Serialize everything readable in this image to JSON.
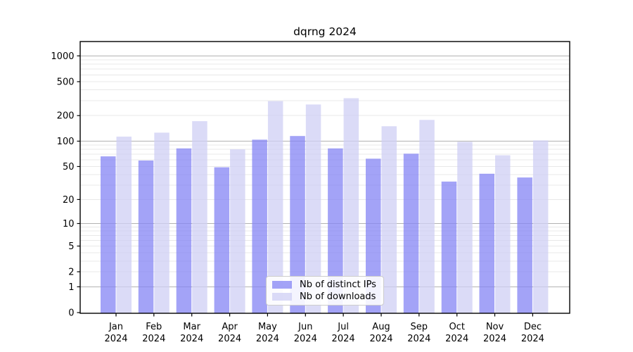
{
  "chart_data": {
    "type": "bar",
    "title": "dqrng 2024",
    "x_axis": {
      "months": [
        "Jan",
        "Feb",
        "Mar",
        "Apr",
        "May",
        "Jun",
        "Jul",
        "Aug",
        "Sep",
        "Oct",
        "Nov",
        "Dec"
      ],
      "year_line": "2024"
    },
    "y_axis": {
      "ticks": [
        1000,
        500,
        200,
        100,
        50,
        20,
        10,
        5,
        2,
        1,
        0
      ],
      "scale": "log10(1+y)",
      "ylim": [
        0,
        1470
      ],
      "grid": "horizontal, major at powers of 10, minor at 2-9 multiples"
    },
    "series": [
      {
        "name": "Nb of distinct IPs",
        "color": "#8484f4",
        "fill_opacity": 0.75,
        "rendered_color": "#a3a3f7",
        "values": [
          66,
          59,
          82,
          49,
          104,
          115,
          82,
          62,
          71,
          33,
          41,
          37
        ]
      },
      {
        "name": "Nb of downloads",
        "color": "#cfcff4",
        "fill_opacity": 0.75,
        "rendered_color": "#dbdbf7",
        "values": [
          113,
          126,
          172,
          80,
          295,
          270,
          320,
          150,
          178,
          98,
          68,
          102
        ]
      }
    ],
    "legend": {
      "position": "bottom-center"
    },
    "colors": {
      "grid_major": "#b2b2b2",
      "grid_minor": "#e8e8e8",
      "spine": "#000000",
      "background": "#ffffff"
    }
  }
}
